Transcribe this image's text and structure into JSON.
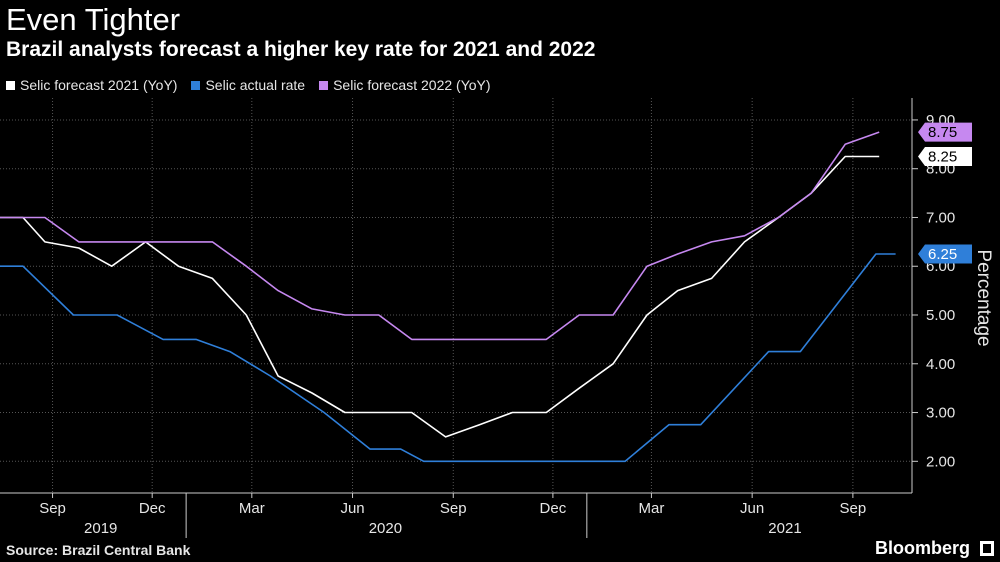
{
  "header": {
    "title": "Even Tighter",
    "subtitle": "Brazil analysts forecast a higher key rate for 2021 and 2022"
  },
  "footer": {
    "source": "Source: Brazil Central Bank",
    "brand": "Bloomberg"
  },
  "chart_data": {
    "type": "line",
    "title": "Even Tighter",
    "subtitle": "Brazil analysts forecast a higher key rate for 2021 and 2022",
    "xlabel": "",
    "ylabel": "Percentage",
    "ylim": [
      1.35,
      9.45
    ],
    "y_ticks": [
      "2.00",
      "3.00",
      "4.00",
      "5.00",
      "6.00",
      "7.00",
      "8.00",
      "9.00"
    ],
    "xlim": [
      "2019-07-15",
      "2021-10-25"
    ],
    "x_ticks": [
      {
        "date": "2019-09-01",
        "label": "Sep"
      },
      {
        "date": "2019-12-01",
        "label": "Dec"
      },
      {
        "date": "2020-03-01",
        "label": "Mar"
      },
      {
        "date": "2020-06-01",
        "label": "Jun"
      },
      {
        "date": "2020-09-01",
        "label": "Sep"
      },
      {
        "date": "2020-12-01",
        "label": "Dec"
      },
      {
        "date": "2021-03-01",
        "label": "Mar"
      },
      {
        "date": "2021-06-01",
        "label": "Jun"
      },
      {
        "date": "2021-09-01",
        "label": "Sep"
      }
    ],
    "year_labels": [
      {
        "date": "2019-10-15",
        "label": "2019"
      },
      {
        "date": "2020-07-01",
        "label": "2020"
      },
      {
        "date": "2021-07-01",
        "label": "2021"
      }
    ],
    "year_dividers": [
      "2020-01-01",
      "2021-01-01"
    ],
    "grid": true,
    "legend_position": "top-left",
    "series": [
      {
        "name": "Selic forecast 2021 (YoY)",
        "color": "#ffffff",
        "last_value_label": "8.25",
        "points": [
          {
            "x": "2019-07-15",
            "y": 7.0
          },
          {
            "x": "2019-08-05",
            "y": 7.0
          },
          {
            "x": "2019-08-25",
            "y": 6.5
          },
          {
            "x": "2019-09-25",
            "y": 6.375
          },
          {
            "x": "2019-10-25",
            "y": 6.0
          },
          {
            "x": "2019-11-25",
            "y": 6.5
          },
          {
            "x": "2019-12-25",
            "y": 6.0
          },
          {
            "x": "2020-01-25",
            "y": 5.75
          },
          {
            "x": "2020-02-25",
            "y": 5.0
          },
          {
            "x": "2020-03-25",
            "y": 3.75
          },
          {
            "x": "2020-04-25",
            "y": 3.4
          },
          {
            "x": "2020-05-25",
            "y": 3.0
          },
          {
            "x": "2020-06-25",
            "y": 3.0
          },
          {
            "x": "2020-07-25",
            "y": 3.0
          },
          {
            "x": "2020-08-25",
            "y": 2.5
          },
          {
            "x": "2020-09-25",
            "y": 2.75
          },
          {
            "x": "2020-10-25",
            "y": 3.0
          },
          {
            "x": "2020-11-25",
            "y": 3.0
          },
          {
            "x": "2020-12-25",
            "y": 3.5
          },
          {
            "x": "2021-01-25",
            "y": 4.0
          },
          {
            "x": "2021-02-25",
            "y": 5.0
          },
          {
            "x": "2021-03-25",
            "y": 5.5
          },
          {
            "x": "2021-04-25",
            "y": 5.75
          },
          {
            "x": "2021-05-25",
            "y": 6.5
          },
          {
            "x": "2021-06-25",
            "y": 7.0
          },
          {
            "x": "2021-07-25",
            "y": 7.5
          },
          {
            "x": "2021-08-25",
            "y": 8.25
          },
          {
            "x": "2021-09-25",
            "y": 8.25
          }
        ]
      },
      {
        "name": "Selic actual rate",
        "color": "#2f7fd9",
        "last_value_label": "6.25",
        "points": [
          {
            "x": "2019-07-15",
            "y": 6.0
          },
          {
            "x": "2019-08-05",
            "y": 6.0
          },
          {
            "x": "2019-09-20",
            "y": 5.0
          },
          {
            "x": "2019-10-30",
            "y": 5.0
          },
          {
            "x": "2019-12-11",
            "y": 4.5
          },
          {
            "x": "2020-01-10",
            "y": 4.5
          },
          {
            "x": "2020-02-10",
            "y": 4.25
          },
          {
            "x": "2020-03-18",
            "y": 3.75
          },
          {
            "x": "2020-05-06",
            "y": 3.0
          },
          {
            "x": "2020-06-17",
            "y": 2.25
          },
          {
            "x": "2020-07-15",
            "y": 2.25
          },
          {
            "x": "2020-08-05",
            "y": 2.0
          },
          {
            "x": "2021-02-05",
            "y": 2.0
          },
          {
            "x": "2021-03-17",
            "y": 2.75
          },
          {
            "x": "2021-04-15",
            "y": 2.75
          },
          {
            "x": "2021-06-16",
            "y": 4.25
          },
          {
            "x": "2021-07-15",
            "y": 4.25
          },
          {
            "x": "2021-09-22",
            "y": 6.25
          },
          {
            "x": "2021-10-10",
            "y": 6.25
          }
        ]
      },
      {
        "name": "Selic forecast 2022 (YoY)",
        "color": "#c688f0",
        "last_value_label": "8.75",
        "points": [
          {
            "x": "2019-07-15",
            "y": 7.0
          },
          {
            "x": "2019-08-05",
            "y": 7.0
          },
          {
            "x": "2019-08-25",
            "y": 7.0
          },
          {
            "x": "2019-09-25",
            "y": 6.5
          },
          {
            "x": "2019-10-25",
            "y": 6.5
          },
          {
            "x": "2019-11-25",
            "y": 6.5
          },
          {
            "x": "2019-12-25",
            "y": 6.5
          },
          {
            "x": "2020-01-25",
            "y": 6.5
          },
          {
            "x": "2020-02-25",
            "y": 6.0
          },
          {
            "x": "2020-03-25",
            "y": 5.5
          },
          {
            "x": "2020-04-25",
            "y": 5.125
          },
          {
            "x": "2020-05-25",
            "y": 5.0
          },
          {
            "x": "2020-06-25",
            "y": 5.0
          },
          {
            "x": "2020-07-25",
            "y": 4.5
          },
          {
            "x": "2020-08-25",
            "y": 4.5
          },
          {
            "x": "2020-09-25",
            "y": 4.5
          },
          {
            "x": "2020-10-25",
            "y": 4.5
          },
          {
            "x": "2020-11-25",
            "y": 4.5
          },
          {
            "x": "2020-12-25",
            "y": 5.0
          },
          {
            "x": "2021-01-25",
            "y": 5.0
          },
          {
            "x": "2021-02-25",
            "y": 6.0
          },
          {
            "x": "2021-03-25",
            "y": 6.25
          },
          {
            "x": "2021-04-25",
            "y": 6.5
          },
          {
            "x": "2021-05-25",
            "y": 6.625
          },
          {
            "x": "2021-06-25",
            "y": 7.0
          },
          {
            "x": "2021-07-25",
            "y": 7.5
          },
          {
            "x": "2021-08-25",
            "y": 8.5
          },
          {
            "x": "2021-09-25",
            "y": 8.75
          }
        ]
      }
    ]
  }
}
